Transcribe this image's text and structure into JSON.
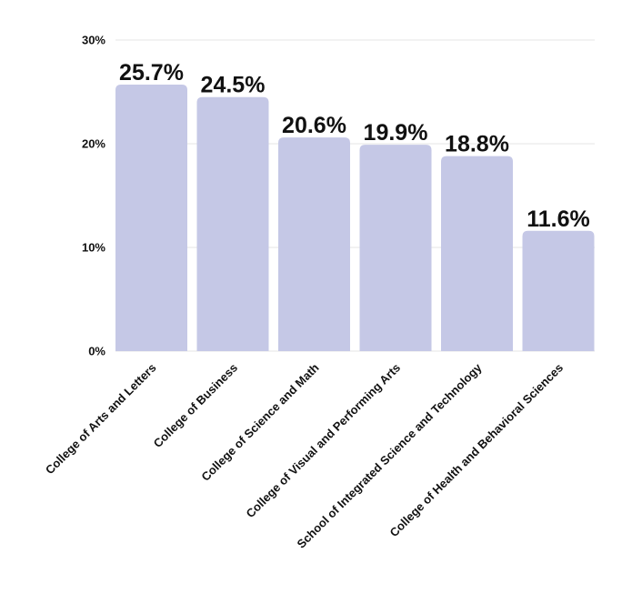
{
  "chart_data": {
    "type": "bar",
    "title": "",
    "xlabel": "",
    "ylabel": "",
    "categories": [
      "College of Arts and Letters",
      "College of Business",
      "College of Science and Math",
      "College of Visual and Performing Arts",
      "School of Integrated Science and Technology",
      "College of Health and Behavioral Sciences"
    ],
    "values": [
      25.7,
      24.5,
      20.6,
      19.9,
      18.8,
      11.6
    ],
    "data_labels": [
      "25.7%",
      "24.5%",
      "20.6%",
      "19.9%",
      "18.8%",
      "11.6%"
    ],
    "ylim": [
      0,
      30
    ],
    "yticks": [
      0,
      10,
      20,
      30
    ],
    "ytick_labels": [
      "0%",
      "10%",
      "20%",
      "30%"
    ],
    "grid": true,
    "legend": "none",
    "bar_color": "#c5c8e6",
    "grid_color": "#e6e6e6",
    "text_color": "#111111"
  }
}
